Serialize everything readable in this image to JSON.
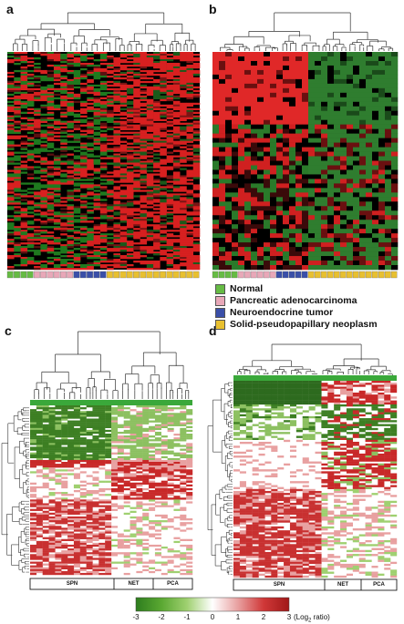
{
  "panels": {
    "a": {
      "letter": "a"
    },
    "b": {
      "letter": "b"
    },
    "c": {
      "letter": "c",
      "groups": [
        {
          "label": "SPN"
        },
        {
          "label": "NET"
        },
        {
          "label": "PCA"
        }
      ]
    },
    "d": {
      "letter": "d",
      "groups": [
        {
          "label": "SPN"
        },
        {
          "label": "NET"
        },
        {
          "label": "PCA"
        }
      ]
    }
  },
  "legend": {
    "items": [
      {
        "label": "Normal",
        "color": "#66bb44"
      },
      {
        "label": "Pancreatic adenocarcinoma",
        "color": "#e8a8b8"
      },
      {
        "label": "Neuroendocrine tumor",
        "color": "#3a4fa8"
      },
      {
        "label": "Solid-pseudopapillary neoplasm",
        "color": "#e8c030"
      }
    ]
  },
  "colorbar": {
    "ticks": [
      "-3",
      "-2",
      "-1",
      "0",
      "1",
      "2",
      "3"
    ],
    "unit_prefix": "(Log",
    "unit_sub": "2",
    "unit_suffix": " ratio)",
    "colors": [
      "#2e7d1e",
      "#5aa832",
      "#9fd070",
      "#ffffff",
      "#e8a0a0",
      "#d03838",
      "#a01818"
    ]
  },
  "sample_bars": {
    "ab": [
      {
        "group": "Normal",
        "count": 4,
        "color": "#66bb44"
      },
      {
        "group": "Pancreatic adenocarcinoma",
        "count": 6,
        "color": "#e8a8b8"
      },
      {
        "group": "Neuroendocrine tumor",
        "count": 5,
        "color": "#3a4fa8"
      },
      {
        "group": "Solid-pseudopapillary neoplasm",
        "count": 14,
        "color": "#e8c030"
      }
    ]
  },
  "heatmap_colors": {
    "red": "#e02020",
    "green": "#2a8a2a",
    "black": "#000000",
    "dark_green": "#2d6a1e",
    "white": "#ffffff",
    "dark_red": "#b01818"
  }
}
